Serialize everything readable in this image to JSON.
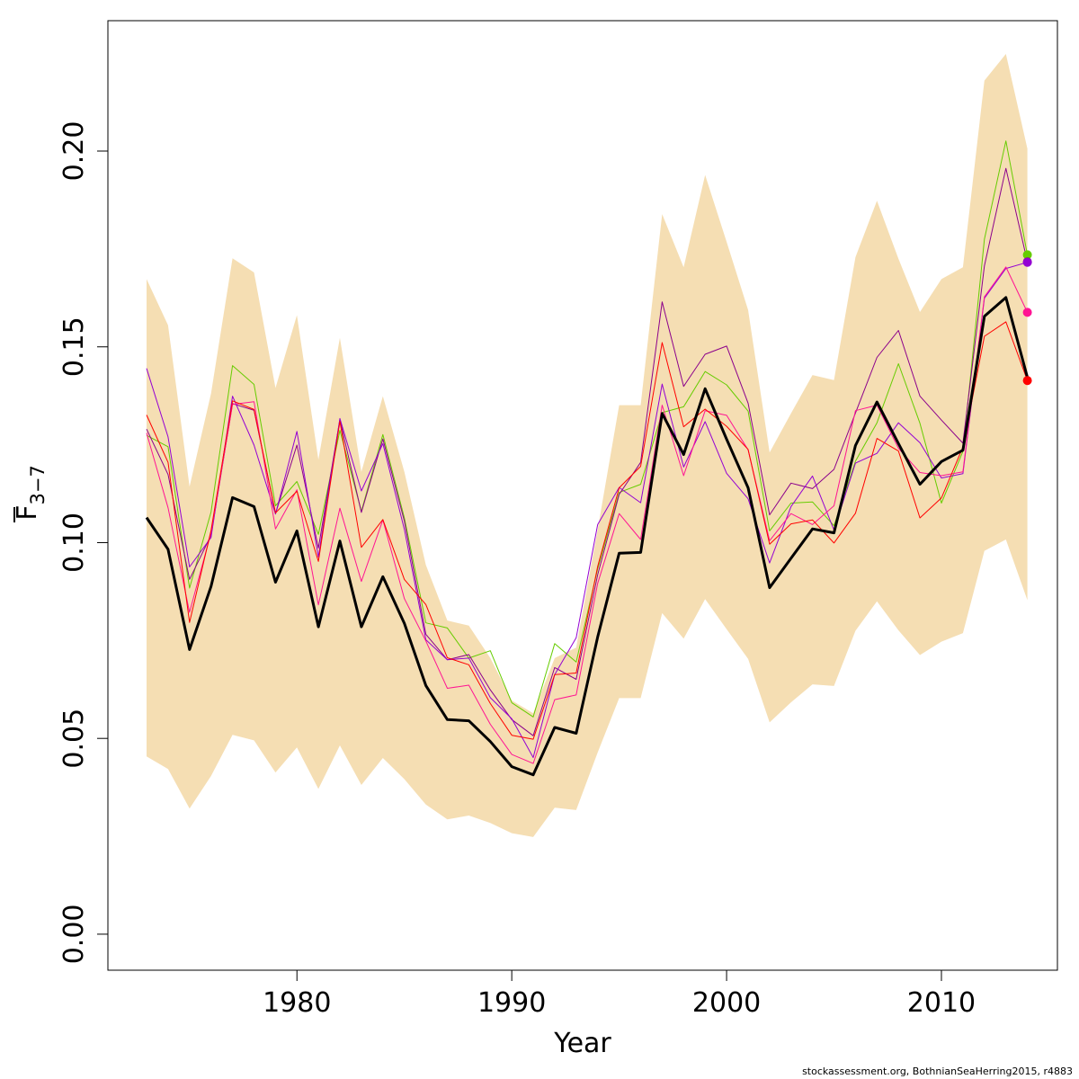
{
  "chart_data": {
    "type": "line",
    "xlabel": "Year",
    "ylabel": {
      "main": "F",
      "sub": "3−7"
    },
    "credit": "stockassessment.org, BothnianSeaHerring2015, r4883",
    "xlim": [
      1971.2,
      2015.4
    ],
    "ylim": [
      -0.0092,
      0.2333
    ],
    "xticks": [
      1980,
      1990,
      2000,
      2010
    ],
    "yticks": [
      0.0,
      0.05,
      0.1,
      0.15,
      0.2
    ],
    "ytick_labels": [
      "0.00",
      "0.05",
      "0.10",
      "0.15",
      "0.20"
    ],
    "band_color": "#F5DEB3",
    "x": [
      1973,
      1974,
      1975,
      1976,
      1977,
      1978,
      1979,
      1980,
      1981,
      1982,
      1983,
      1984,
      1985,
      1986,
      1987,
      1988,
      1989,
      1990,
      1991,
      1992,
      1993,
      1994,
      1995,
      1996,
      1997,
      1998,
      1999,
      2000,
      2001,
      2002,
      2003,
      2004,
      2005,
      2006,
      2007,
      2008,
      2009,
      2010,
      2011,
      2012,
      2013,
      2014
    ],
    "band_upper": [
      0.1673,
      0.1555,
      0.1143,
      0.1381,
      0.1726,
      0.169,
      0.1395,
      0.1581,
      0.1212,
      0.1523,
      0.1181,
      0.1374,
      0.1181,
      0.0943,
      0.0801,
      0.0788,
      0.0705,
      0.0597,
      0.0564,
      0.0705,
      0.0732,
      0.1034,
      0.1351,
      0.1351,
      0.1839,
      0.1703,
      0.1939,
      0.1768,
      0.1594,
      0.123,
      0.133,
      0.1428,
      0.1415,
      0.1729,
      0.1873,
      0.1725,
      0.1589,
      0.1673,
      0.1703,
      0.218,
      0.2248,
      0.2006
    ],
    "band_lower": [
      0.0454,
      0.0422,
      0.0321,
      0.0404,
      0.0509,
      0.0495,
      0.0413,
      0.0477,
      0.0371,
      0.0482,
      0.0381,
      0.045,
      0.0396,
      0.0331,
      0.0293,
      0.0303,
      0.0284,
      0.0258,
      0.0248,
      0.0323,
      0.0317,
      0.0464,
      0.0603,
      0.0603,
      0.082,
      0.0755,
      0.0856,
      0.0779,
      0.0703,
      0.0541,
      0.0592,
      0.0638,
      0.0634,
      0.0775,
      0.085,
      0.0776,
      0.0713,
      0.0747,
      0.0769,
      0.0979,
      0.1008,
      0.0853
    ],
    "series": [
      {
        "color": "#000000",
        "width": 3,
        "values": [
          0.1064,
          0.0983,
          0.0727,
          0.0888,
          0.1115,
          0.1092,
          0.0899,
          0.103,
          0.0785,
          0.1004,
          0.0785,
          0.0913,
          0.0794,
          0.0635,
          0.0548,
          0.0545,
          0.0492,
          0.0428,
          0.0407,
          0.0528,
          0.0513,
          0.0759,
          0.0973,
          0.0975,
          0.133,
          0.1225,
          0.1393,
          0.1264,
          0.114,
          0.0885,
          0.096,
          0.1035,
          0.1025,
          0.1248,
          0.1359,
          0.1253,
          0.1149,
          0.1207,
          0.1236,
          0.1578,
          0.1626,
          0.1422
        ]
      },
      {
        "color": "#66CC00",
        "width": 1,
        "values": [
          0.1274,
          0.1245,
          0.0884,
          0.1078,
          0.1452,
          0.1404,
          0.1094,
          0.1156,
          0.1021,
          0.1287,
          0.108,
          0.1276,
          0.1063,
          0.0795,
          0.0782,
          0.0705,
          0.0724,
          0.0591,
          0.0555,
          0.0742,
          0.0695,
          0.0933,
          0.1128,
          0.1149,
          0.1332,
          0.1347,
          0.1437,
          0.1403,
          0.1336,
          0.103,
          0.1101,
          0.1104,
          0.1043,
          0.1208,
          0.1306,
          0.1457,
          0.1305,
          0.1101,
          0.1233,
          0.1775,
          0.2026,
          0.1735
        ]
      },
      {
        "color": "#8B008B",
        "width": 1,
        "values": [
          0.129,
          0.1174,
          0.0906,
          0.1019,
          0.1355,
          0.1338,
          0.1074,
          0.1249,
          0.0986,
          0.1314,
          0.1077,
          0.1265,
          0.1055,
          0.0766,
          0.0701,
          0.0714,
          0.0624,
          0.0548,
          0.0507,
          0.0681,
          0.0651,
          0.0918,
          0.1123,
          0.1205,
          0.1615,
          0.1399,
          0.1481,
          0.1502,
          0.1356,
          0.1071,
          0.1152,
          0.1138,
          0.1187,
          0.1331,
          0.1473,
          0.1542,
          0.1374,
          0.1313,
          0.1254,
          0.1707,
          0.1956,
          0.1717
        ]
      },
      {
        "color": "#9400D3",
        "width": 1,
        "values": [
          0.1445,
          0.127,
          0.0938,
          0.1013,
          0.1374,
          0.1249,
          0.1073,
          0.1284,
          0.0963,
          0.1317,
          0.1132,
          0.1253,
          0.1034,
          0.0752,
          0.0701,
          0.0705,
          0.0604,
          0.055,
          0.0451,
          0.0663,
          0.0757,
          0.1046,
          0.1141,
          0.1102,
          0.1405,
          0.1193,
          0.1309,
          0.1177,
          0.1112,
          0.0948,
          0.1092,
          0.117,
          0.1032,
          0.1203,
          0.1228,
          0.1306,
          0.1255,
          0.1165,
          0.1176,
          0.1624,
          0.17,
          0.1716
        ]
      },
      {
        "color": "#FF1493",
        "width": 1,
        "values": [
          0.128,
          0.1089,
          0.0822,
          0.1025,
          0.1353,
          0.136,
          0.1035,
          0.1135,
          0.0841,
          0.1088,
          0.0901,
          0.1058,
          0.0857,
          0.0749,
          0.0628,
          0.0636,
          0.0536,
          0.0459,
          0.0436,
          0.0599,
          0.0611,
          0.0896,
          0.1074,
          0.1008,
          0.1351,
          0.1171,
          0.1337,
          0.1325,
          0.1237,
          0.1005,
          0.1074,
          0.1046,
          0.1094,
          0.1337,
          0.1351,
          0.1241,
          0.1179,
          0.1171,
          0.1181,
          0.1628,
          0.1704,
          0.1588
        ]
      },
      {
        "color": "#FF0000",
        "width": 1,
        "values": [
          0.1326,
          0.1205,
          0.0796,
          0.1031,
          0.1362,
          0.134,
          0.1076,
          0.1131,
          0.0952,
          0.131,
          0.0988,
          0.1059,
          0.0906,
          0.0842,
          0.0706,
          0.0688,
          0.0589,
          0.0508,
          0.0498,
          0.0663,
          0.0667,
          0.0939,
          0.114,
          0.1195,
          0.1511,
          0.1296,
          0.1341,
          0.1297,
          0.1238,
          0.0996,
          0.1048,
          0.1058,
          0.0999,
          0.1075,
          0.1266,
          0.1234,
          0.1063,
          0.1114,
          0.1244,
          0.1527,
          0.1564,
          0.1414
        ]
      }
    ]
  }
}
